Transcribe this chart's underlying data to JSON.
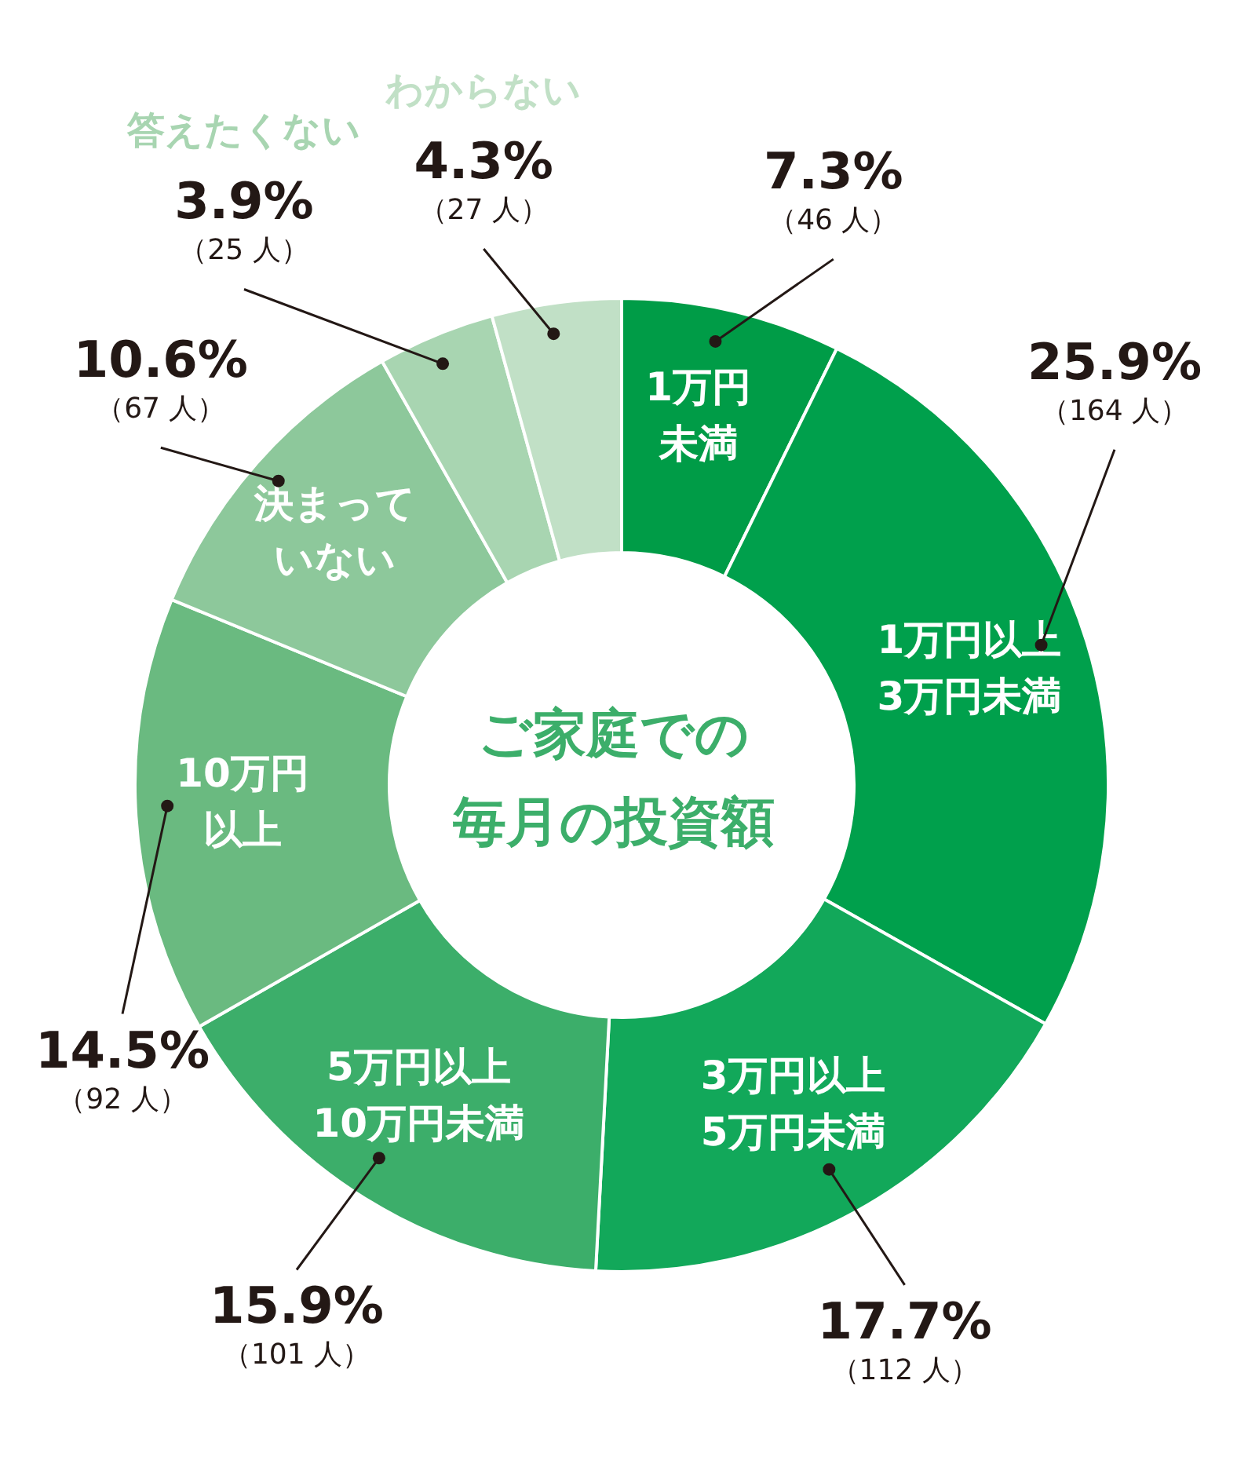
{
  "chart_data": {
    "type": "donut",
    "title": "ご家庭での毎月の投資額",
    "categories": [
      "1万円未満",
      "1万円以上3万円未満",
      "3万円以上5万円未満",
      "5万円以上10万円未満",
      "10万円以上",
      "決まっていない",
      "答えたくない",
      "わからない"
    ],
    "values": [
      7.3,
      25.9,
      17.7,
      15.9,
      14.5,
      10.6,
      3.9,
      4.3
    ],
    "colors": [
      "#009c47",
      "#00a04c",
      "#12a85a",
      "#3cae6a",
      "#6aba80",
      "#8dc89b",
      "#a8d5b1",
      "#c1e0c6"
    ],
    "value_labels": [
      "7.3%\n（46 人）",
      "25.9%\n（164 人）",
      "17.7%\n（112 人）",
      "15.9%\n（101 人）",
      "14.5%\n（92 人）",
      "10.6%\n（67 人）",
      "3.9%\n（25 人）",
      "4.3%\n（27 人）"
    ],
    "legend": false
  }
}
